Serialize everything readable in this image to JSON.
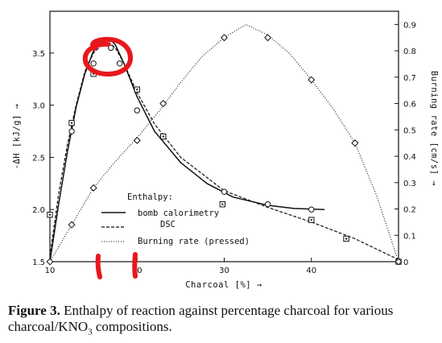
{
  "figure": {
    "label": "Figure 3.",
    "caption_line1": "Enthalpy of reaction against percentage charcoal for various",
    "caption_line2": "charcoal/KNO",
    "caption_sub": "3",
    "caption_tail": " compositions."
  },
  "chart_data": {
    "type": "line",
    "xlabel": "Charcoal [%] →",
    "ylabel_left": "-ΔH [kJ/g] →",
    "ylabel_right": "Burning rate [cm/s] →",
    "xlim": [
      10,
      50
    ],
    "ylim_left": [
      1.5,
      3.9
    ],
    "ylim_right": [
      0,
      0.95
    ],
    "x_ticks": [
      10,
      20,
      30,
      40
    ],
    "x_tick_labels": [
      "10",
      "20",
      "30",
      "40"
    ],
    "y_left_ticks": [
      1.5,
      2.0,
      2.5,
      3.0,
      3.5
    ],
    "y_left_tick_labels": [
      "1.5",
      "2.0",
      "2.5",
      "3.0",
      "3.5"
    ],
    "y_right_ticks": [
      0,
      0.1,
      0.2,
      0.3,
      0.4,
      0.5,
      0.6,
      0.7,
      0.8,
      0.9
    ],
    "y_right_tick_labels": [
      "0",
      "0.1",
      "0.2",
      "0.3",
      "0.4",
      "0.5",
      "0.6",
      "0.7",
      "0.8",
      "0.9"
    ],
    "legend_title": "Enthalpy:",
    "grid": false,
    "series": [
      {
        "name": "bomb calorimetry",
        "axis": "left",
        "style": "solid",
        "marker": "circle",
        "x": [
          12.5,
          15,
          16,
          17,
          18,
          20,
          23,
          30,
          35,
          40
        ],
        "y": [
          2.75,
          3.4,
          3.6,
          3.55,
          3.4,
          2.95,
          2.7,
          2.17,
          2.05,
          2.0
        ]
      },
      {
        "name": "DSC",
        "axis": "left",
        "style": "dashed",
        "marker": "square",
        "x": [
          10,
          12.5,
          15,
          20,
          23,
          29.8,
          40,
          44,
          50
        ],
        "y": [
          1.95,
          2.83,
          3.3,
          3.15,
          2.7,
          2.05,
          1.9,
          1.72,
          1.5
        ]
      },
      {
        "name": "Burning rate (pressed)",
        "axis": "right",
        "style": "dotted",
        "marker": "diamond",
        "x": [
          10,
          12.5,
          15,
          20,
          23,
          30,
          35,
          40,
          45,
          50
        ],
        "y": [
          0,
          0.14,
          0.28,
          0.46,
          0.6,
          0.85,
          0.85,
          0.69,
          0.45,
          0
        ]
      }
    ],
    "curves": [
      {
        "series": "bomb calorimetry",
        "x": [
          10,
          11,
          12,
          13,
          14,
          15,
          16,
          16.8,
          17.5,
          18.5,
          20,
          22,
          25,
          28,
          31,
          35,
          38,
          41.5
        ],
        "y": [
          1.5,
          2.05,
          2.55,
          2.98,
          3.3,
          3.52,
          3.62,
          3.64,
          3.58,
          3.4,
          3.08,
          2.75,
          2.45,
          2.25,
          2.12,
          2.04,
          2.01,
          2.0
        ]
      },
      {
        "series": "DSC",
        "x": [
          10,
          11,
          12,
          13,
          14,
          15,
          16,
          16.8,
          17.5,
          18.5,
          20,
          22,
          25,
          30,
          35,
          40,
          45,
          50
        ],
        "y": [
          1.55,
          2.15,
          2.62,
          3.0,
          3.32,
          3.5,
          3.58,
          3.6,
          3.55,
          3.4,
          3.12,
          2.82,
          2.5,
          2.18,
          2.02,
          1.88,
          1.72,
          1.52
        ]
      },
      {
        "series": "Burning rate (pressed)",
        "x": [
          10,
          12.5,
          15,
          17.5,
          20,
          22.5,
          25,
          27.5,
          30,
          32.5,
          35,
          37.5,
          40,
          42.5,
          45,
          47.5,
          50
        ],
        "y": [
          0,
          0.14,
          0.28,
          0.38,
          0.47,
          0.57,
          0.68,
          0.78,
          0.85,
          0.9,
          0.86,
          0.79,
          0.69,
          0.58,
          0.45,
          0.25,
          0
        ]
      }
    ]
  }
}
